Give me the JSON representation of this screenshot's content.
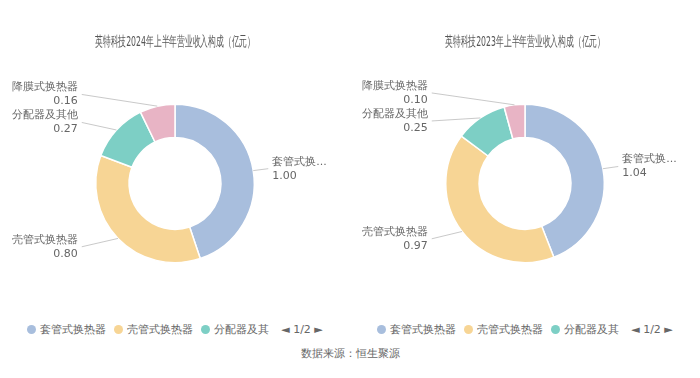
{
  "chart_data": [
    {
      "type": "doughnut",
      "title": "英特科技2024年上半年营业收入构成（亿元）",
      "categories": [
        "套管式换...",
        "壳管式换热器",
        "分配器及其他",
        "降膜式换热器"
      ],
      "values": [
        1.0,
        0.8,
        0.27,
        0.16
      ],
      "value_labels": [
        "1.00",
        "0.80",
        "0.27",
        "0.16"
      ],
      "colors": [
        "#a8bedd",
        "#f7d595",
        "#7dcfc5",
        "#e8b4c5"
      ],
      "data_labels": true,
      "legend": "bottom",
      "legend_entries": [
        {
          "name": "套管式换热器",
          "color": "#a8bedd"
        },
        {
          "name": "壳管式换热器",
          "color": "#f7d595"
        },
        {
          "name": "分配器及其",
          "color": "#7dcfc5"
        }
      ],
      "legend_page": "◄ 1/2 ►"
    },
    {
      "type": "doughnut",
      "title": "英特科技2023年上半年营业收入构成（亿元）",
      "categories": [
        "套管式换...",
        "壳管式换热器",
        "分配器及其他",
        "降膜式换热器"
      ],
      "values": [
        1.04,
        0.97,
        0.25,
        0.1
      ],
      "value_labels": [
        "1.04",
        "0.97",
        "0.25",
        "0.10"
      ],
      "colors": [
        "#a8bedd",
        "#f7d595",
        "#7dcfc5",
        "#e8b4c5"
      ],
      "data_labels": true,
      "legend": "bottom",
      "legend_entries": [
        {
          "name": "套管式换热器",
          "color": "#a8bedd"
        },
        {
          "name": "壳管式换热器",
          "color": "#f7d595"
        },
        {
          "name": "分配器及其",
          "color": "#7dcfc5"
        }
      ],
      "legend_page": "◄ 1/2 ►"
    }
  ],
  "annotations": [
    "数据来源：恒生聚源"
  ]
}
